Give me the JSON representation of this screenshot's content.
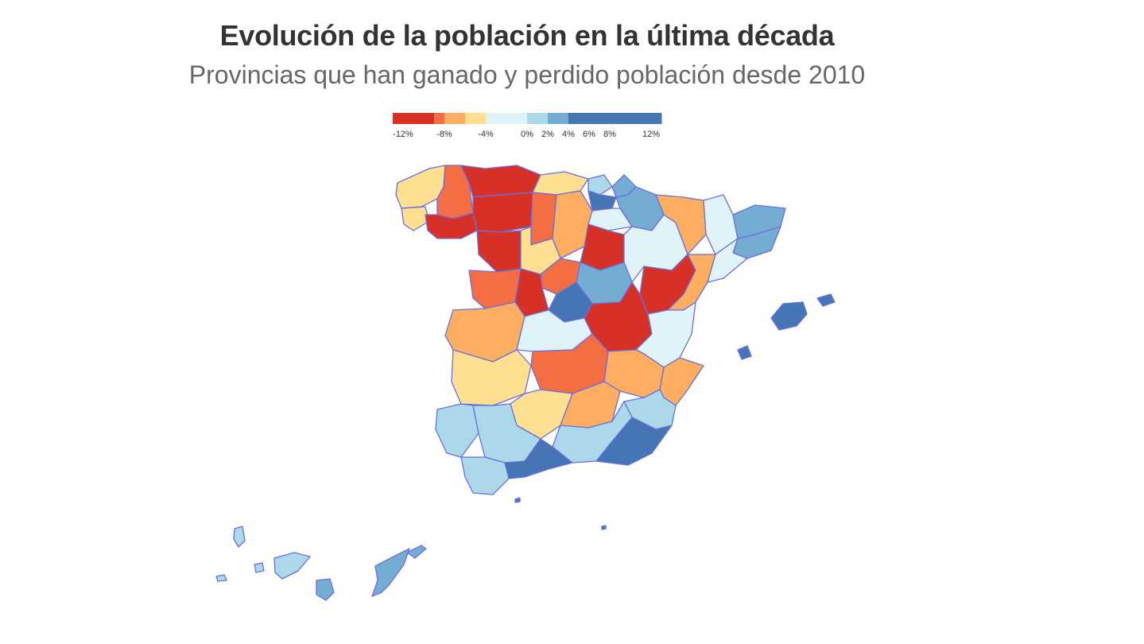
{
  "header": {
    "title": "Evolución de la población en la última década",
    "subtitle": "Provincias que han ganado y perdido población desde 2010"
  },
  "legend": {
    "bins": [
      {
        "from": -13,
        "to": -9,
        "color": "#d73027"
      },
      {
        "from": -9,
        "to": -8,
        "color": "#f46d43"
      },
      {
        "from": -8,
        "to": -6,
        "color": "#fdae61"
      },
      {
        "from": -6,
        "to": -4,
        "color": "#fee090"
      },
      {
        "from": -4,
        "to": 0,
        "color": "#e0f3f8"
      },
      {
        "from": 0,
        "to": 2,
        "color": "#abd9e9"
      },
      {
        "from": 2,
        "to": 4,
        "color": "#74add1"
      },
      {
        "from": 4,
        "to": 13,
        "color": "#4575b4"
      }
    ],
    "ticks": [
      {
        "value": -12,
        "label": "-12%"
      },
      {
        "value": -8,
        "label": "-8%"
      },
      {
        "value": -4,
        "label": "-4%"
      },
      {
        "value": 0,
        "label": "0%"
      },
      {
        "value": 2,
        "label": "2%"
      },
      {
        "value": 4,
        "label": "4%"
      },
      {
        "value": 6,
        "label": "6%"
      },
      {
        "value": 8,
        "label": "8%"
      },
      {
        "value": 12,
        "label": "12%"
      }
    ],
    "range": [
      -13,
      13
    ]
  },
  "colors": {
    "loss_high": "#d73027",
    "loss_mid": "#f46d43",
    "loss_low": "#fdae61",
    "loss_min": "#fee090",
    "neutral": "#e0f3f8",
    "gain_low": "#abd9e9",
    "gain_mid": "#74add1",
    "gain_high": "#4575b4",
    "border": "#6a6fe0"
  }
}
